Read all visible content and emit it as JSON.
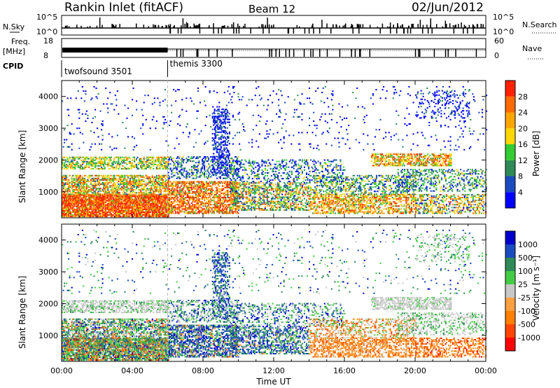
{
  "header": {
    "station": "Rankin Inlet (fitACF)",
    "beam": "Beam 12",
    "date": "02/Jun/2012"
  },
  "summary": {
    "nsky_label": "N.Sky",
    "nsky_ticks": [
      "10^5",
      "10^0"
    ],
    "nsearch_label": "N.Search",
    "nsearch_ticks": [
      "10^5",
      "10^0"
    ],
    "freq_label": "Freq.",
    "freq_unit": "[MHz]",
    "freq_ticks": [
      "18",
      "8"
    ],
    "nave_label": "Nave",
    "nave_ticks": [
      "60",
      "0"
    ],
    "cpid_label": "CPID",
    "cpid_modes": [
      {
        "name": "twofsound 3501",
        "start_hour": 0,
        "end_hour": 6
      },
      {
        "name": "themis 3300",
        "start_hour": 6,
        "end_hour": 24
      }
    ]
  },
  "colors": {
    "power": [
      "#0000ff",
      "#1a4bbf",
      "#2e8b57",
      "#33cc33",
      "#ffd700",
      "#ffa500",
      "#ff6a00",
      "#ff2200"
    ],
    "velocity": [
      "#ff0000",
      "#ff4500",
      "#ff7f00",
      "#ffa040",
      "#c8c8c8",
      "#44cc44",
      "#2e8b57",
      "#1a4bbf",
      "#0000cc"
    ]
  },
  "chart_data": [
    {
      "type": "heatmap",
      "name": "power",
      "xlabel": "",
      "ylabel": "Slant Range [km]",
      "x_ticks": [
        "00:00",
        "04:00",
        "08:00",
        "12:00",
        "16:00",
        "20:00",
        "00:00"
      ],
      "xlim_hours": [
        0,
        24
      ],
      "y_ticks": [
        1000,
        2000,
        3000,
        4000
      ],
      "ylim": [
        180,
        4500
      ],
      "colorbar_label": "Power [dB]",
      "colorbar_ticks": [
        "4",
        "8",
        "12",
        "16",
        "20",
        "24",
        "28"
      ],
      "colorbar_range": [
        0,
        32
      ]
    },
    {
      "type": "heatmap",
      "name": "velocity",
      "xlabel": "Time UT",
      "ylabel": "Slant Range [km]",
      "x_ticks": [
        "00:00",
        "04:00",
        "08:00",
        "12:00",
        "16:00",
        "20:00",
        "00:00"
      ],
      "xlim_hours": [
        0,
        24
      ],
      "y_ticks": [
        1000,
        2000,
        3000,
        4000
      ],
      "ylim": [
        180,
        4500
      ],
      "colorbar_label": "Velocity [m s⁻¹]",
      "colorbar_ticks": [
        "1000",
        "500",
        "100",
        "25",
        "-25",
        "-100",
        "-500",
        "-1000"
      ]
    }
  ]
}
